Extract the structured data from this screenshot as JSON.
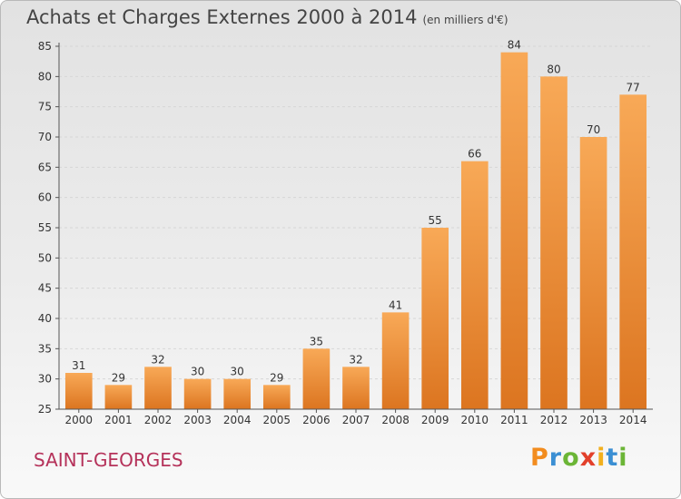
{
  "title": "Achats et Charges Externes 2000 à 2014",
  "subtitle": "(en milliers d'€)",
  "commune": "SAINT-GEORGES",
  "logo": {
    "letters": [
      "P",
      "r",
      "o",
      "x",
      "i",
      "t",
      "i"
    ],
    "colors": [
      "#f28c1e",
      "#3b8fd3",
      "#6bb536",
      "#e2402b",
      "#f2b01e",
      "#3b8fd3",
      "#6bb536"
    ]
  },
  "colors": {
    "bar_light": "#f8a957",
    "bar_dark": "#dc7520",
    "grid": "#d6d6d6",
    "axis": "#555555"
  },
  "chart_data": {
    "type": "bar",
    "title": "Achats et Charges Externes 2000 à 2014",
    "subtitle": "(en milliers d'€)",
    "categories": [
      "2000",
      "2001",
      "2002",
      "2003",
      "2004",
      "2005",
      "2006",
      "2007",
      "2008",
      "2009",
      "2010",
      "2011",
      "2012",
      "2013",
      "2014"
    ],
    "values": [
      31,
      29,
      32,
      30,
      30,
      29,
      35,
      32,
      41,
      55,
      66,
      84,
      80,
      70,
      77
    ],
    "ylim": [
      25,
      85
    ],
    "yticks": [
      25,
      30,
      35,
      40,
      45,
      50,
      55,
      60,
      65,
      70,
      75,
      80,
      85
    ],
    "grid": true,
    "data_labels": true
  }
}
